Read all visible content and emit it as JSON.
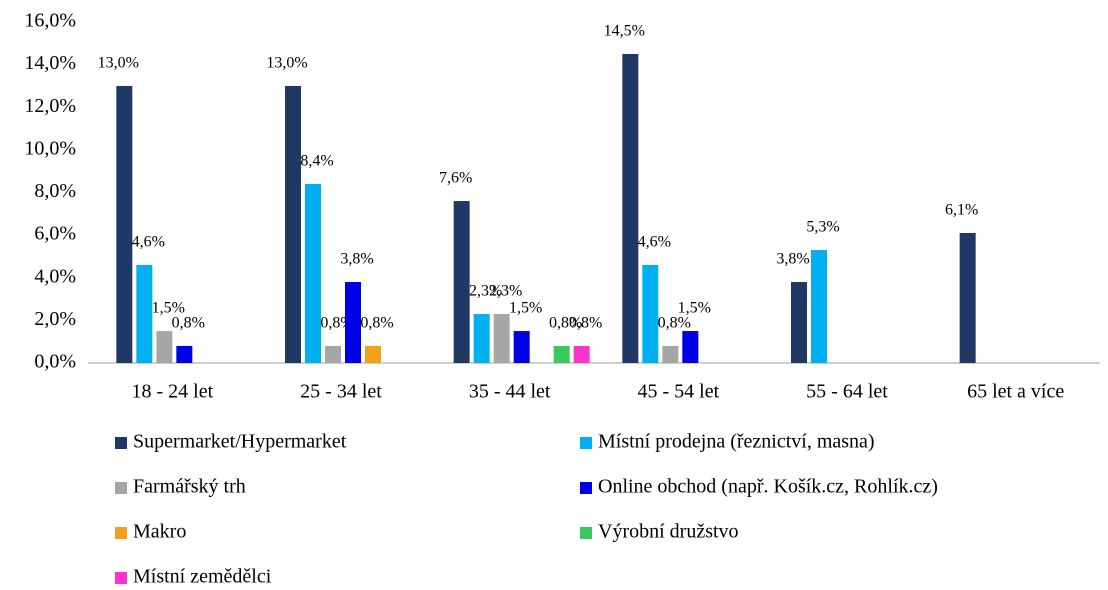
{
  "chart_data": {
    "type": "bar",
    "categories": [
      "18 - 24 let",
      "25 - 34 let",
      "35 - 44 let",
      "45 - 54 let",
      "55 - 64 let",
      "65 let a více"
    ],
    "series": [
      {
        "name": "Supermarket/Hypermarket",
        "color": "#1f3864",
        "values": [
          13.0,
          13.0,
          7.6,
          14.5,
          3.8,
          6.1
        ],
        "value_labels": [
          "13,0%",
          "13,0%",
          "7,6%",
          "14,5%",
          "3,8%",
          "6,1%"
        ]
      },
      {
        "name": "Místní prodejna (řeznictví, masna)",
        "color": "#00b0f0",
        "values": [
          4.6,
          8.4,
          2.3,
          4.6,
          5.3,
          null
        ],
        "value_labels": [
          "4,6%",
          "8,4%",
          "2,3%",
          "4,6%",
          "5,3%",
          null
        ]
      },
      {
        "name": "Farmářský trh",
        "color": "#a6a6a6",
        "values": [
          1.5,
          0.8,
          2.3,
          0.8,
          null,
          null
        ],
        "value_labels": [
          "1,5%",
          "0,8%",
          "2,3%",
          "0,8%",
          null,
          null
        ]
      },
      {
        "name": "Online obchod (např. Košík.cz, Rohlík.cz)",
        "color": "#0000e6",
        "values": [
          0.8,
          3.8,
          1.5,
          1.5,
          null,
          null
        ],
        "value_labels": [
          "0,8%",
          "3,8%",
          "1,5%",
          "1,5%",
          null,
          null
        ]
      },
      {
        "name": "Makro",
        "color": "#f5a01a",
        "values": [
          null,
          0.8,
          null,
          null,
          null,
          null
        ],
        "value_labels": [
          null,
          "0,8%",
          null,
          null,
          null,
          null
        ]
      },
      {
        "name": "Výrobní družstvo",
        "color": "#3cc85a",
        "values": [
          null,
          null,
          0.8,
          null,
          null,
          null
        ],
        "value_labels": [
          null,
          null,
          "0,8%",
          null,
          null,
          null
        ]
      },
      {
        "name": "Místní zemědělci",
        "color": "#ff33cc",
        "values": [
          null,
          null,
          0.8,
          null,
          null,
          null
        ],
        "value_labels": [
          null,
          null,
          "0,8%",
          null,
          null,
          null
        ]
      }
    ],
    "ylim": [
      0,
      16
    ],
    "yticks": [
      {
        "value": 0,
        "label": "0,0%"
      },
      {
        "value": 2,
        "label": "2,0%"
      },
      {
        "value": 4,
        "label": "4,0%"
      },
      {
        "value": 6,
        "label": "6,0%"
      },
      {
        "value": 8,
        "label": "8,0%"
      },
      {
        "value": 10,
        "label": "10,0%"
      },
      {
        "value": 12,
        "label": "12,0%"
      },
      {
        "value": 14,
        "label": "14,0%"
      },
      {
        "value": 16,
        "label": "16,0%"
      }
    ],
    "legend": "bottom"
  }
}
